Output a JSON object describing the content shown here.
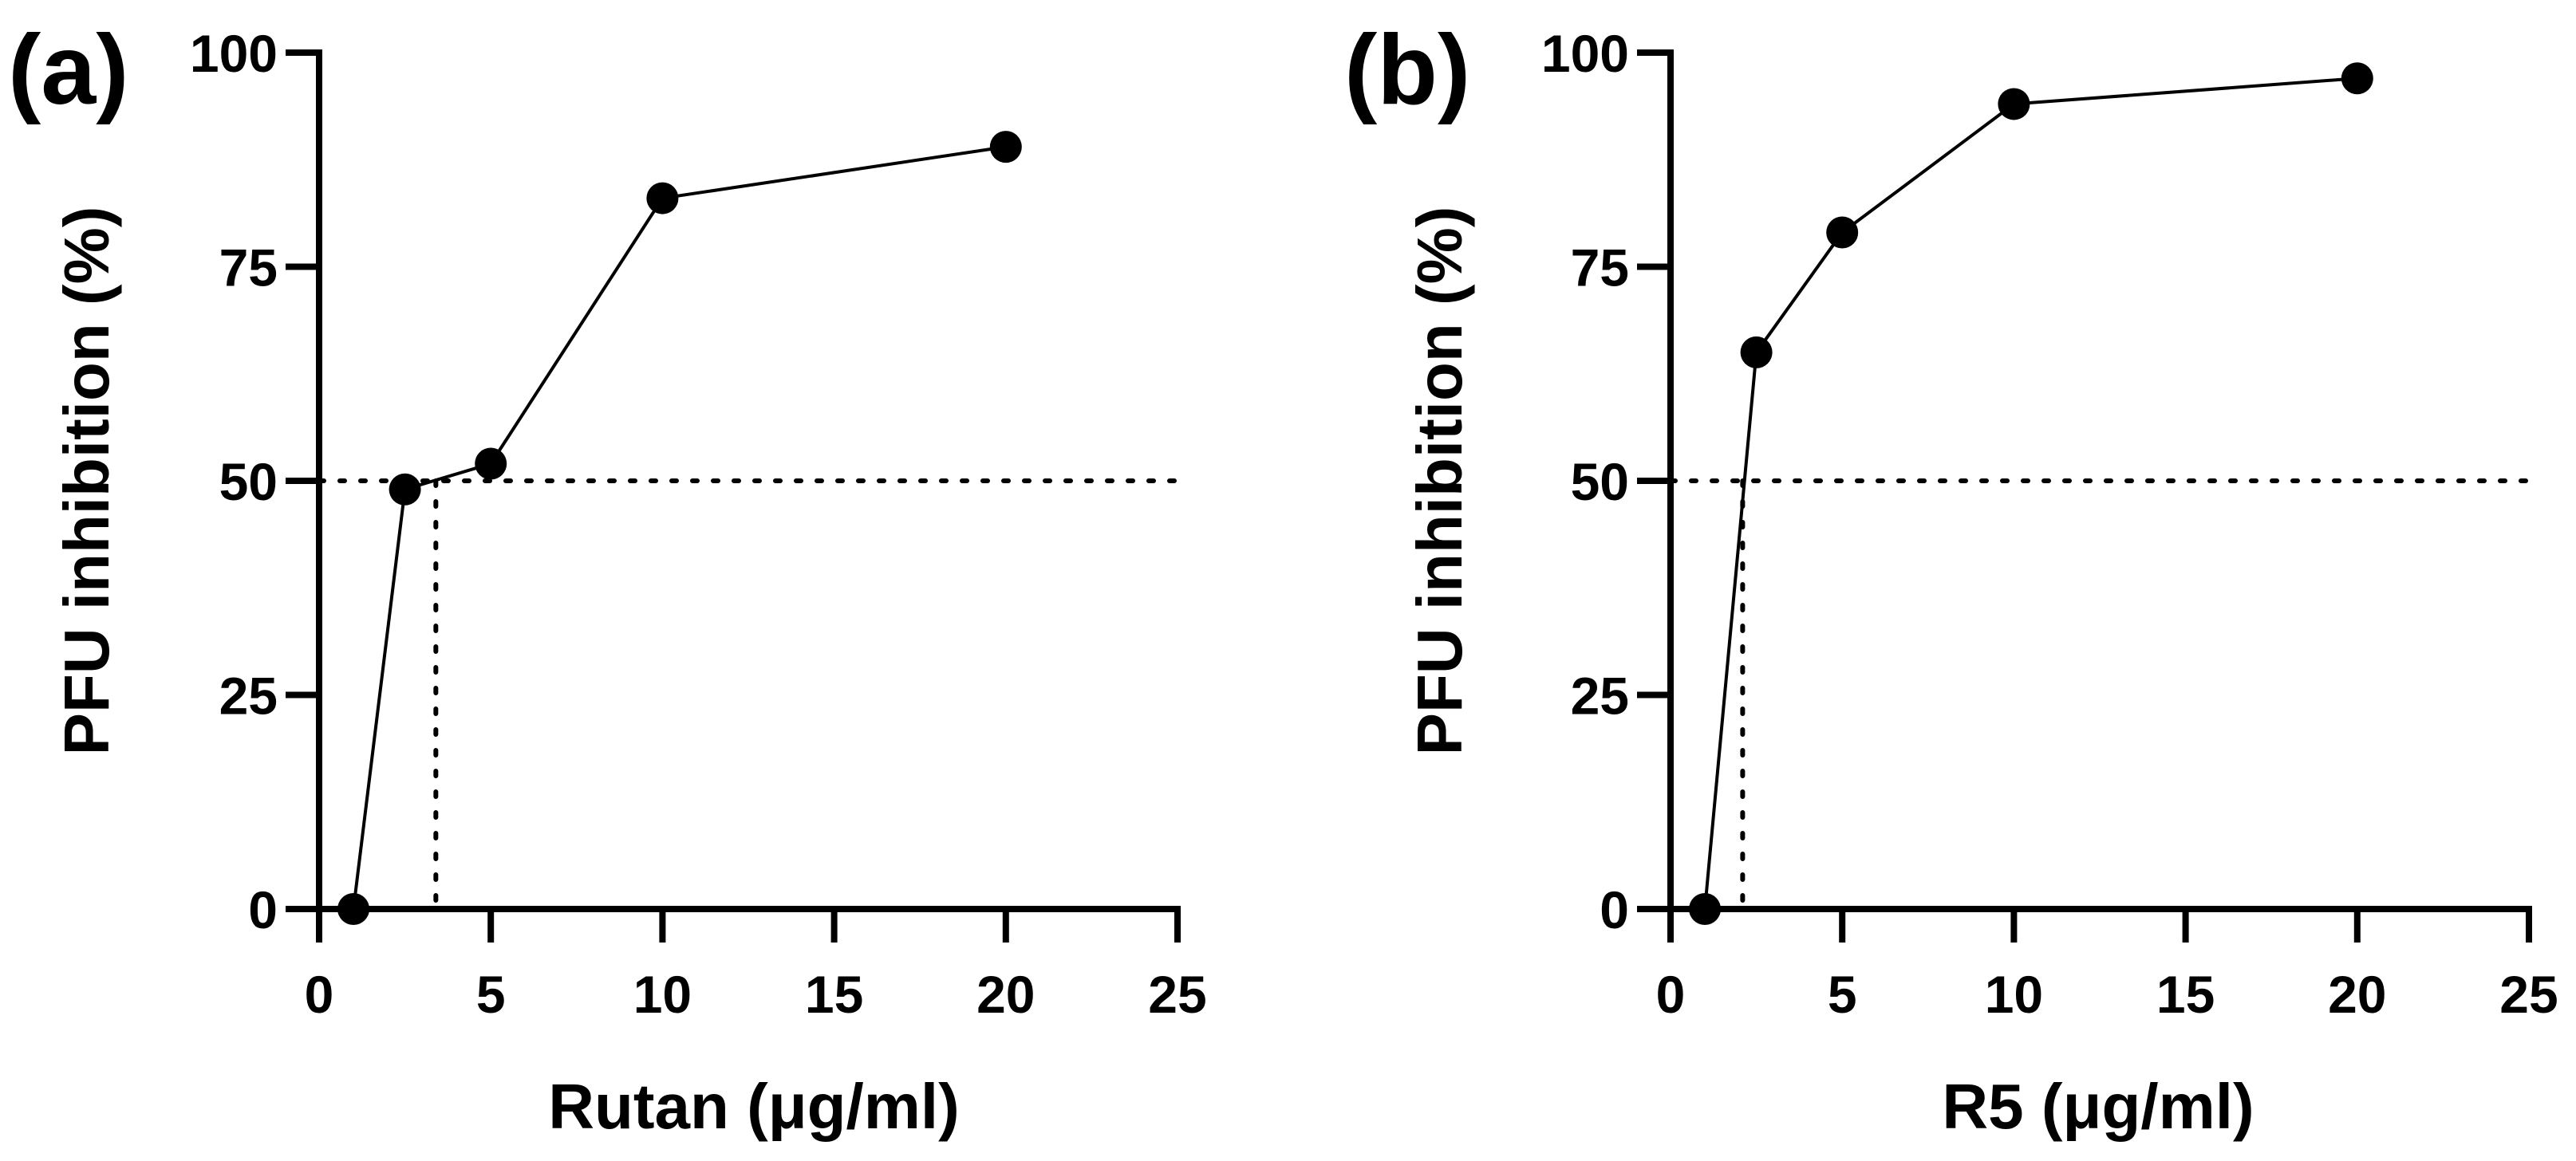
{
  "chart_data": [
    {
      "type": "line",
      "panel_label": "(a)",
      "xlabel": "Rutan (μg/ml)",
      "ylabel": "PFU inhibition (%)",
      "xlim": [
        0,
        25
      ],
      "ylim": [
        0,
        100
      ],
      "xticks": [
        0,
        5,
        10,
        15,
        20,
        25
      ],
      "yticks": [
        0,
        25,
        50,
        75,
        100
      ],
      "series": [
        {
          "name": "Rutan",
          "x": [
            1,
            2.5,
            5,
            10,
            20
          ],
          "y": [
            0,
            49,
            52,
            83,
            89
          ]
        }
      ],
      "reference_lines": {
        "y": 50,
        "x": 3.4
      }
    },
    {
      "type": "line",
      "panel_label": "(b)",
      "xlabel": "R5 (μg/ml)",
      "ylabel": "PFU inhibition (%)",
      "xlim": [
        0,
        25
      ],
      "ylim": [
        0,
        100
      ],
      "xticks": [
        0,
        5,
        10,
        15,
        20,
        25
      ],
      "yticks": [
        0,
        25,
        50,
        75,
        100
      ],
      "series": [
        {
          "name": "R5",
          "x": [
            1,
            2.5,
            5,
            10,
            20
          ],
          "y": [
            0,
            65,
            79,
            94,
            97
          ]
        }
      ],
      "reference_lines": {
        "y": 50,
        "x": 2.1
      }
    }
  ]
}
